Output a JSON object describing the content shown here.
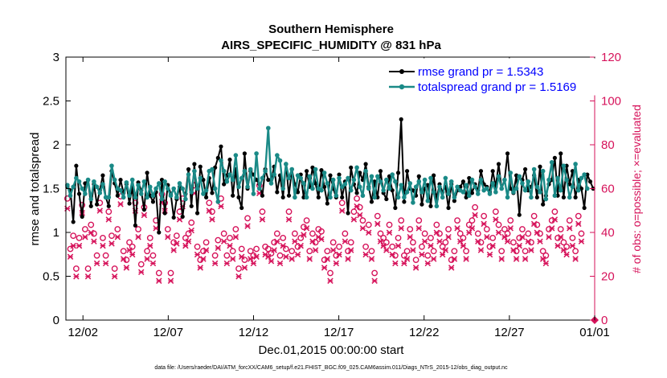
{
  "chart_data": {
    "type": "line",
    "title": "Southern Hemisphere",
    "subtitle": "AIRS_SPECIFIC_HUMIDITY @ 831 hPa",
    "xlabel": "Dec.01,2015 00:00:00 start",
    "ylabel": "rmse and totalspread",
    "ylabel_right": "# of obs: o=possible; ×=evaluated",
    "xlim": [
      0,
      31
    ],
    "ylim": [
      0,
      3
    ],
    "ylim_right": [
      0,
      120
    ],
    "x_ticks": [
      1,
      6,
      11,
      16,
      21,
      26,
      31
    ],
    "x_tick_labels": [
      "12/02",
      "12/07",
      "12/12",
      "12/17",
      "12/22",
      "12/27",
      "01/01"
    ],
    "y_ticks": [
      "0",
      "0.5",
      "1",
      "1.5",
      "2",
      "2.5",
      "3"
    ],
    "y_ticks_right": [
      "0",
      "20",
      "40",
      "60",
      "80",
      "100",
      "120"
    ],
    "legend_position": "top-right",
    "footer": "data file: /Users/raeder/DAI/ATM_forcXX/CAM6_setup/f.e21.FHIST_BGC.f09_025.CAM6assim.011/Diags_NTrS_2015-12/obs_diag_output.nc",
    "colors": {
      "rmse": "#000000",
      "spread": "#1a8a87",
      "obs": "#d6125a"
    },
    "series": [
      {
        "name": "rmse grand pr = 1.5343",
        "values": [
          1.52,
          1.48,
          1.12,
          1.76,
          1.44,
          1.18,
          1.56,
          1.6,
          1.3,
          1.55,
          1.32,
          1.48,
          1.65,
          1.4,
          1.3,
          1.7,
          1.56,
          1.42,
          1.6,
          1.45,
          1.55,
          1.33,
          1.52,
          1.08,
          1.57,
          1.48,
          1.26,
          1.68,
          1.42,
          1.35,
          1.46,
          1.0,
          1.6,
          1.22,
          1.54,
          1.44,
          1.17,
          1.38,
          1.52,
          1.18,
          1.44,
          1.72,
          1.3,
          1.78,
          1.22,
          1.75,
          1.6,
          1.4,
          1.62,
          1.45,
          1.74,
          1.85,
          1.98,
          1.55,
          1.65,
          1.83,
          1.42,
          1.72,
          1.4,
          1.28,
          1.9,
          1.5,
          1.7,
          1.66,
          1.6,
          1.55,
          1.42,
          1.72,
          1.6,
          1.6,
          1.75,
          1.46,
          1.65,
          1.4,
          1.78,
          1.42,
          1.72,
          1.55,
          1.46,
          1.66,
          1.4,
          1.7,
          1.52,
          1.74,
          1.56,
          1.4,
          1.71,
          1.52,
          1.33,
          1.65,
          1.5,
          1.4,
          1.66,
          1.4,
          1.58,
          1.22,
          1.74,
          1.55,
          1.45,
          1.68,
          1.6,
          1.78,
          1.52,
          1.35,
          1.58,
          1.4,
          1.7,
          1.45,
          1.38,
          1.64,
          1.48,
          1.28,
          1.68,
          2.29,
          1.35,
          1.7,
          1.5,
          1.48,
          1.42,
          1.64,
          1.32,
          1.5,
          1.54,
          1.3,
          1.65,
          1.38,
          1.55,
          1.46,
          1.52,
          1.28,
          1.55,
          1.36,
          1.48,
          1.52,
          1.58,
          1.4,
          1.62,
          1.45,
          1.55,
          1.48,
          1.7,
          1.55,
          1.52,
          1.46,
          1.7,
          1.52,
          1.78,
          1.5,
          1.6,
          1.9,
          1.5,
          1.45,
          1.65,
          1.2,
          1.6,
          1.72,
          1.48,
          1.52,
          1.65,
          1.4,
          1.75,
          1.32,
          1.42,
          1.55,
          1.6,
          1.85,
          1.42,
          1.9,
          1.4,
          1.76,
          1.55,
          1.7,
          1.4,
          1.6,
          1.5,
          1.28,
          1.66,
          1.58,
          1.5
        ]
      },
      {
        "name": "totalspread grand pr = 1.5169",
        "values": [
          1.54,
          1.42,
          1.52,
          1.62,
          1.58,
          1.5,
          1.44,
          1.6,
          1.38,
          1.58,
          1.52,
          1.45,
          1.55,
          1.4,
          1.4,
          1.76,
          1.6,
          1.5,
          1.48,
          1.4,
          1.57,
          1.42,
          1.6,
          1.4,
          1.54,
          1.44,
          1.58,
          1.4,
          1.52,
          1.42,
          1.5,
          1.56,
          1.38,
          1.58,
          1.5,
          1.42,
          1.5,
          1.4,
          1.56,
          1.5,
          1.38,
          1.66,
          1.46,
          1.7,
          1.5,
          1.62,
          1.44,
          1.48,
          1.7,
          1.72,
          1.5,
          1.35,
          1.82,
          1.7,
          1.58,
          1.66,
          1.6,
          1.88,
          1.52,
          1.62,
          1.7,
          1.52,
          1.72,
          1.44,
          1.9,
          1.5,
          1.62,
          1.7,
          2.19,
          1.56,
          1.66,
          1.88,
          1.82,
          1.5,
          1.78,
          1.62,
          1.72,
          1.4,
          1.65,
          1.62,
          1.56,
          1.4,
          1.64,
          1.5,
          1.72,
          1.5,
          1.48,
          1.68,
          1.56,
          1.4,
          1.6,
          1.42,
          1.62,
          1.52,
          1.55,
          1.62,
          1.48,
          1.6,
          1.74,
          1.52,
          1.42,
          1.7,
          1.5,
          1.64,
          1.4,
          1.64,
          1.58,
          1.48,
          1.6,
          1.5,
          1.66,
          1.58,
          1.4,
          1.54,
          1.4,
          1.46,
          1.56,
          1.34,
          1.52,
          1.58,
          1.46,
          1.6,
          1.36,
          1.62,
          1.46,
          1.3,
          1.52,
          1.4,
          1.62,
          1.44,
          1.58,
          1.4,
          1.52,
          1.48,
          1.46,
          1.54,
          1.42,
          1.6,
          1.52,
          1.44,
          1.6,
          1.48,
          1.5,
          1.44,
          1.56,
          1.46,
          1.64,
          1.5,
          1.6,
          1.4,
          1.68,
          1.46,
          1.5,
          1.64,
          1.56,
          1.48,
          1.58,
          1.4,
          1.72,
          1.52,
          1.46,
          1.7,
          1.38,
          1.6,
          1.8,
          1.42,
          1.62,
          1.48,
          1.76,
          1.6,
          1.4,
          1.52,
          1.78,
          1.48,
          1.62,
          1.66,
          1.5
        ]
      },
      {
        "name": "# of obs possible (o)",
        "axis": "right",
        "values": [
          54,
          31,
          37,
          22,
          36,
          51,
          40,
          22,
          42,
          38,
          28,
          52,
          36,
          28,
          48,
          37,
          22,
          40,
          55,
          30,
          26,
          34,
          32,
          52,
          40,
          24,
          50,
          30,
          36,
          28,
          44,
          20,
          56,
          52,
          40,
          20,
          34,
          37,
          48,
          54,
          36,
          38,
          43,
          60,
          32,
          26,
          30,
          34,
          52,
          48,
          28,
          35,
          54,
          38,
          28,
          36,
          30,
          40,
          22,
          31,
          26,
          45,
          30,
          28,
          31,
          60,
          48,
          32,
          31,
          29,
          34,
          38,
          28,
          36,
          31,
          48,
          30,
          38,
          32,
          36,
          41,
          44,
          30,
          38,
          34,
          40,
          39,
          26,
          30,
          20,
          34,
          28,
          32,
          52,
          38,
          30,
          34,
          48,
          54,
          50,
          44,
          32,
          42,
          30,
          20,
          46,
          38,
          36,
          34,
          42,
          32,
          28,
          36,
          44,
          28,
          30,
          40,
          34,
          26,
          44,
          32,
          38,
          28,
          36,
          30,
          42,
          38,
          32,
          34,
          40,
          26,
          30,
          44,
          38,
          36,
          30,
          42,
          44,
          50,
          38,
          34,
          46,
          40,
          32,
          36,
          48,
          42,
          30,
          40,
          38,
          44,
          34,
          30,
          36,
          40,
          30,
          38,
          34,
          46,
          42,
          38,
          30,
          28,
          40,
          44,
          48,
          36,
          40,
          34,
          32,
          44,
          36,
          30,
          46,
          38
        ]
      },
      {
        "name": "# of obs evaluated (×)",
        "axis": "right",
        "values": [
          52,
          30,
          35,
          21,
          35,
          50,
          39,
          21,
          41,
          37,
          27,
          51,
          35,
          27,
          47,
          36,
          21,
          39,
          54,
          29,
          25,
          33,
          31,
          51,
          39,
          23,
          49,
          29,
          35,
          27,
          43,
          19,
          55,
          51,
          39,
          19,
          33,
          36,
          47,
          53,
          35,
          37,
          42,
          59,
          31,
          25,
          29,
          33,
          51,
          47,
          27,
          34,
          53,
          37,
          27,
          35,
          29,
          39,
          21,
          30,
          25,
          44,
          29,
          27,
          30,
          59,
          47,
          31,
          30,
          28,
          33,
          37,
          27,
          35,
          30,
          47,
          29,
          37,
          31,
          35,
          40,
          43,
          29,
          37,
          33,
          39,
          38,
          25,
          29,
          19,
          33,
          27,
          31,
          51,
          37,
          29,
          33,
          47,
          53,
          49,
          43,
          31,
          41,
          29,
          19,
          45,
          37,
          35,
          33,
          41,
          31,
          27,
          35,
          43,
          27,
          29,
          39,
          33,
          25,
          43,
          31,
          37,
          27,
          35,
          29,
          41,
          37,
          31,
          33,
          39,
          25,
          29,
          43,
          37,
          35,
          29,
          41,
          43,
          49,
          37,
          33,
          45,
          39,
          31,
          35,
          47,
          41,
          29,
          39,
          37,
          43,
          33,
          29,
          35,
          39,
          29,
          37,
          33,
          45,
          41,
          37,
          29,
          27,
          39,
          43,
          47,
          35,
          39,
          33,
          31,
          43,
          35,
          29,
          45,
          37
        ]
      }
    ]
  }
}
